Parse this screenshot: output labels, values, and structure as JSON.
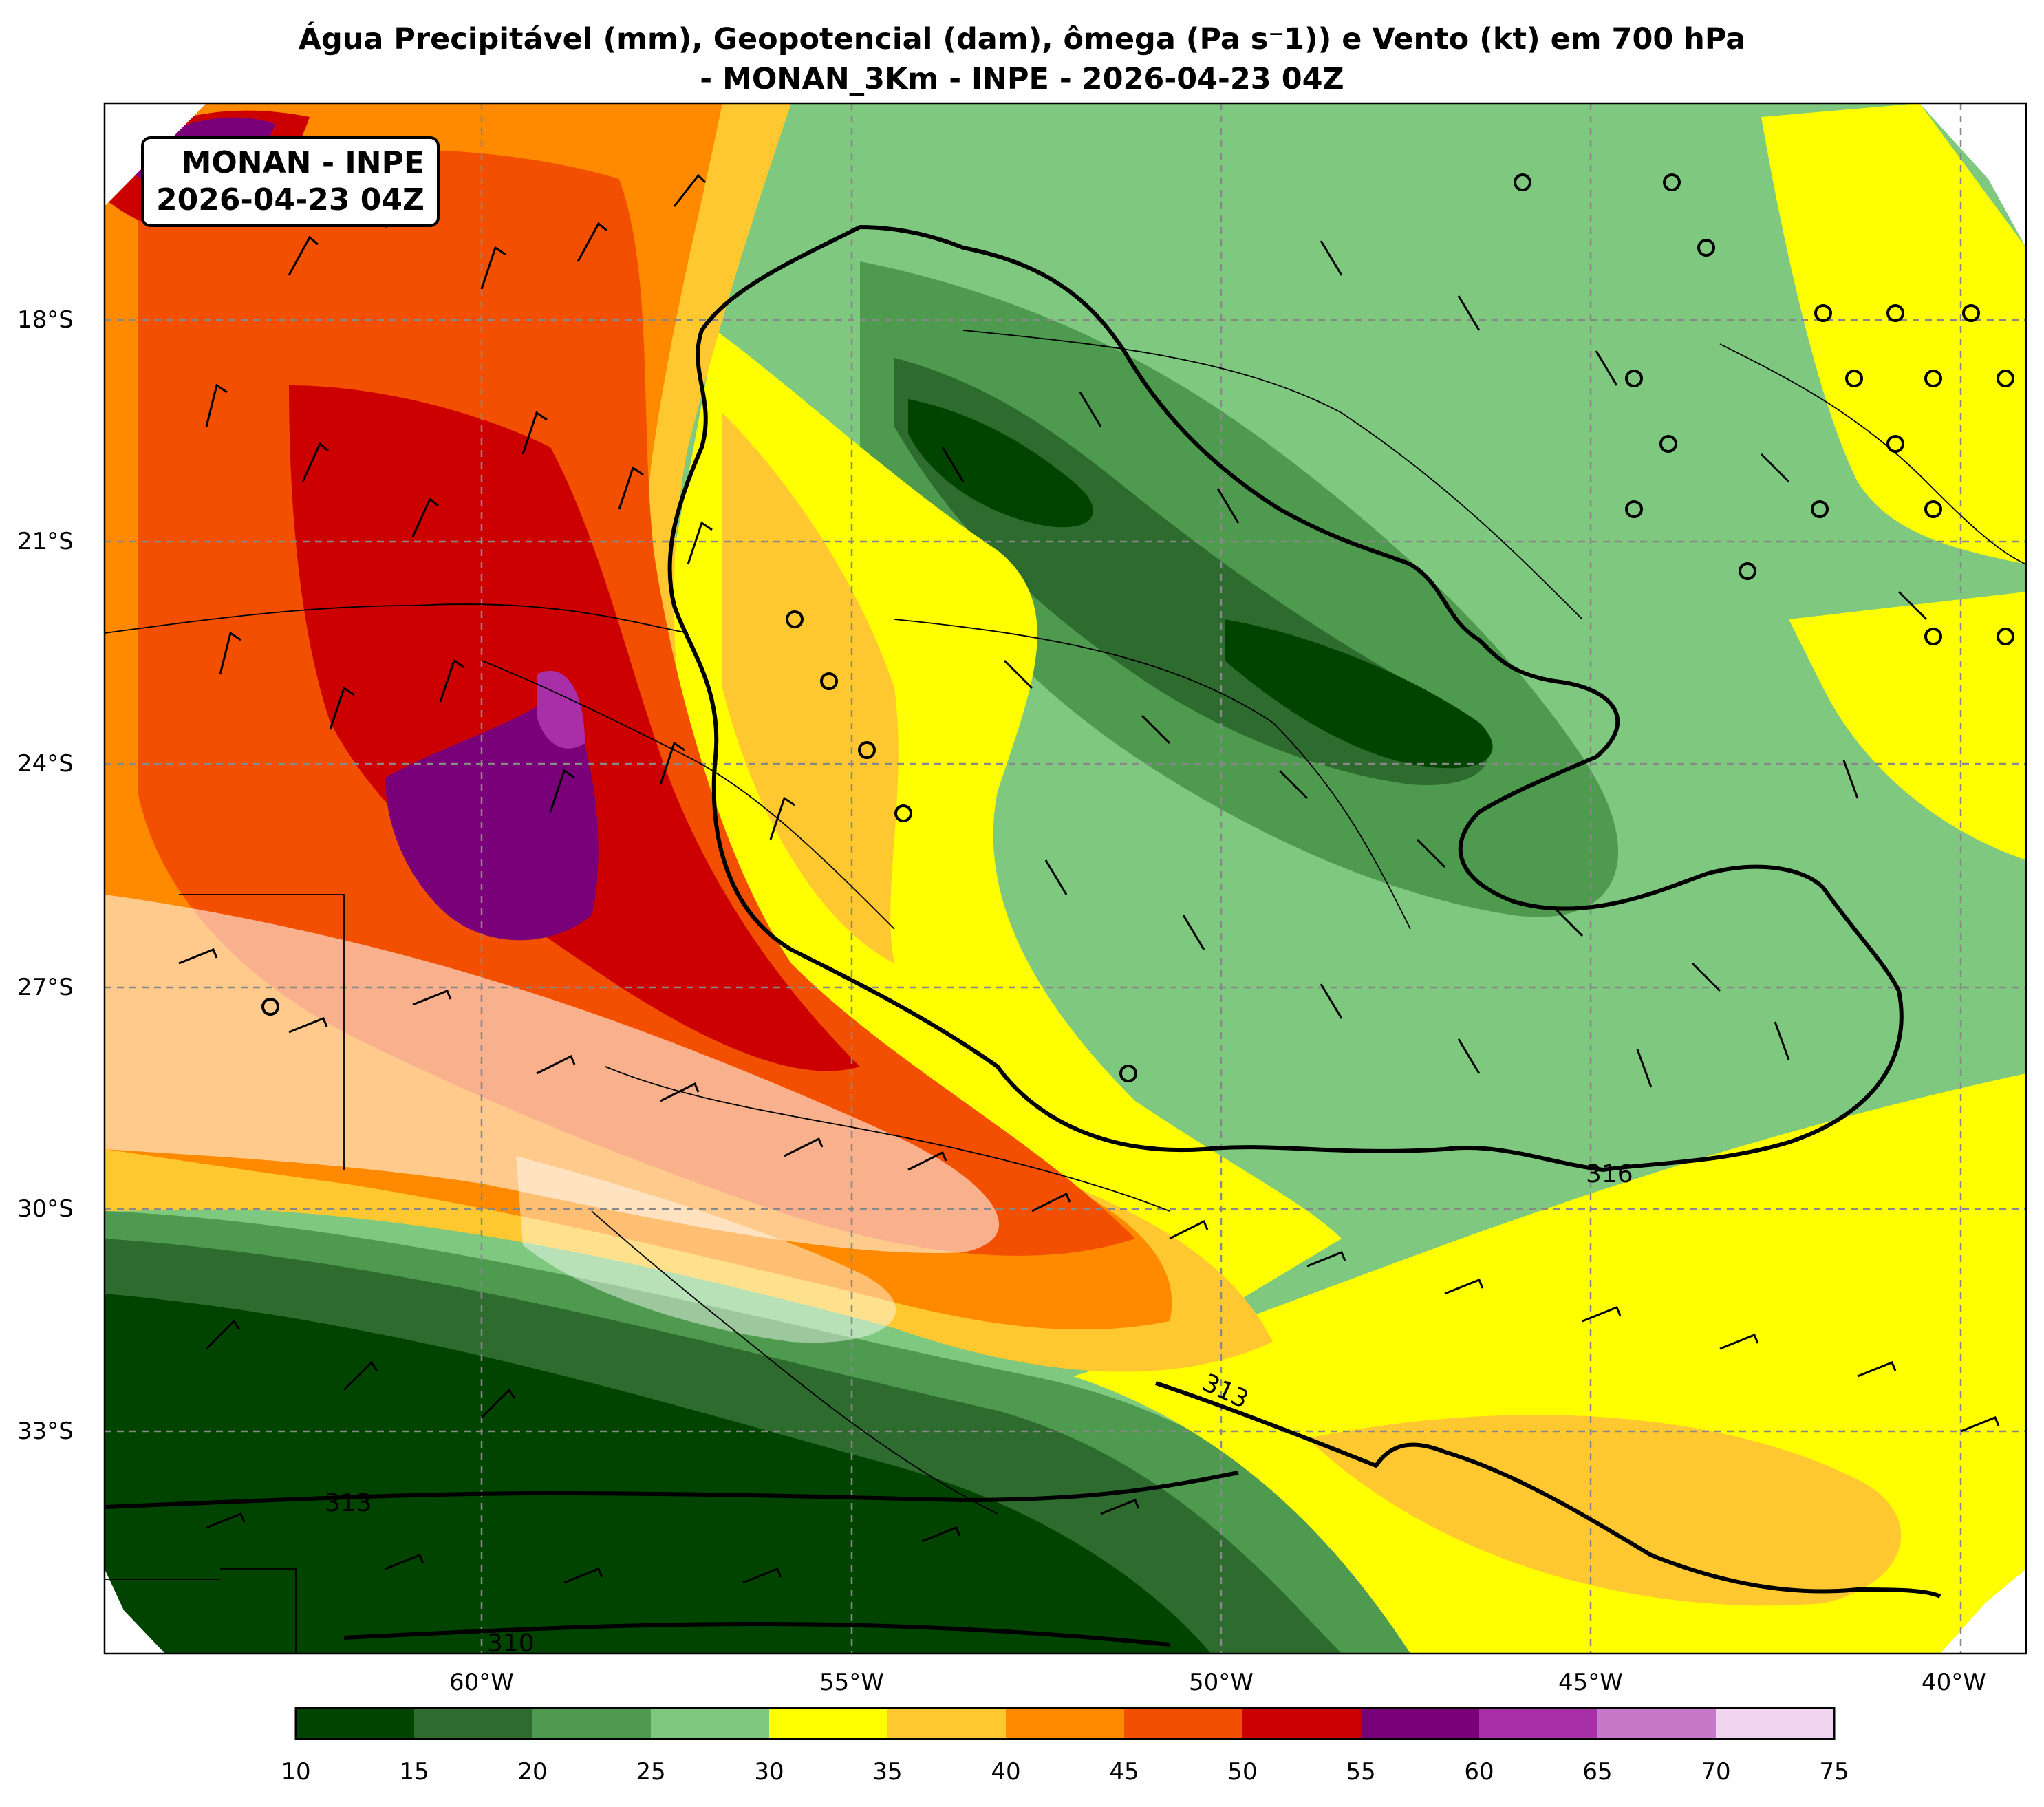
{
  "title": {
    "line1": "Água Precipitável (mm), Geopotencial (dam), ômega (Pa s⁻1)) e Vento (kt) em 700 hPa",
    "line2": "- MONAN_3Km - INPE - 2026-04-23 04Z"
  },
  "map_box": {
    "line1": "MONAN - INPE",
    "line2": "2026-04-23 04Z"
  },
  "lat_labels": [
    "18°S",
    "21°S",
    "24°S",
    "27°S",
    "30°S",
    "33°S"
  ],
  "lon_labels": [
    "60°W",
    "55°W",
    "50°W",
    "45°W",
    "40°W"
  ],
  "contour_labels": [
    "316",
    "313",
    "313",
    "310"
  ],
  "colorbar": {
    "ticks": [
      "10",
      "15",
      "20",
      "25",
      "30",
      "35",
      "40",
      "45",
      "50",
      "55",
      "60",
      "65",
      "70",
      "75"
    ],
    "colors": [
      "#004400",
      "#2e6b2e",
      "#4e9a4e",
      "#7fc87f",
      "#ffff00",
      "#ffc830",
      "#ff8a00",
      "#f25000",
      "#cc0000",
      "#7a007a",
      "#a82fa8",
      "#c878c8",
      "#f0d4f0"
    ]
  },
  "legend_colors": {
    "contour": "#000000",
    "omega": "#ffffff",
    "grid": "#888888"
  }
}
